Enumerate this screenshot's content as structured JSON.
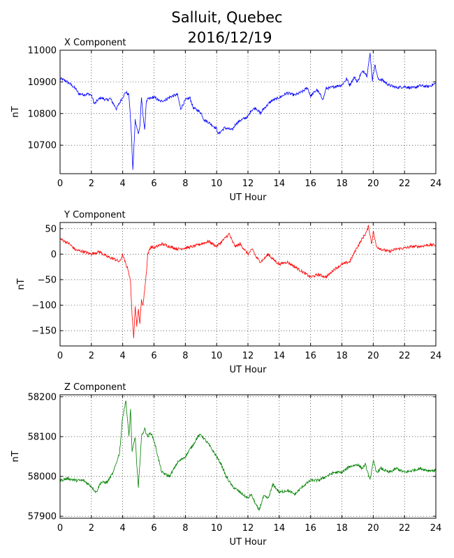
{
  "figure": {
    "title_line1": "Salluit, Quebec",
    "title_line2": "2016/12/19"
  },
  "chart_data": [
    {
      "type": "line",
      "title": "X Component",
      "xlabel": "UT Hour",
      "ylabel": "nT",
      "xlim": [
        0,
        24
      ],
      "ylim": [
        10610,
        11000
      ],
      "xticks": [
        0,
        2,
        4,
        6,
        8,
        10,
        12,
        14,
        16,
        18,
        20,
        22,
        24
      ],
      "yticks": [
        10700,
        10800,
        10900,
        11000
      ],
      "grid": true,
      "color": "#0000ff",
      "x": [
        0,
        0.3,
        0.6,
        1.0,
        1.2,
        1.6,
        1.8,
        2.0,
        2.2,
        2.4,
        2.6,
        3.0,
        3.2,
        3.6,
        4.0,
        4.2,
        4.4,
        4.55,
        4.65,
        4.8,
        5.0,
        5.1,
        5.2,
        5.4,
        5.5,
        5.6,
        6.0,
        6.4,
        6.8,
        7.0,
        7.5,
        7.7,
        8.0,
        8.3,
        8.5,
        8.8,
        9.0,
        9.2,
        9.5,
        10.0,
        10.1,
        10.5,
        11.0,
        11.2,
        11.5,
        12.0,
        12.2,
        12.5,
        12.8,
        13.0,
        13.5,
        14.0,
        14.5,
        15.0,
        15.5,
        15.8,
        16.0,
        16.4,
        16.8,
        17.0,
        17.2,
        17.5,
        18.0,
        18.3,
        18.5,
        18.8,
        19.0,
        19.2,
        19.4,
        19.6,
        19.8,
        19.95,
        20.1,
        20.3,
        20.6,
        21.0,
        21.5,
        22.0,
        22.5,
        23.0,
        23.5,
        24.0
      ],
      "y": [
        10910,
        10905,
        10895,
        10878,
        10862,
        10860,
        10862,
        10858,
        10830,
        10842,
        10850,
        10842,
        10848,
        10815,
        10852,
        10868,
        10858,
        10740,
        10620,
        10780,
        10735,
        10760,
        10850,
        10745,
        10835,
        10845,
        10852,
        10838,
        10845,
        10852,
        10860,
        10815,
        10842,
        10850,
        10818,
        10810,
        10802,
        10780,
        10772,
        10752,
        10735,
        10755,
        10748,
        10766,
        10778,
        10790,
        10810,
        10818,
        10800,
        10815,
        10840,
        10850,
        10865,
        10858,
        10870,
        10882,
        10855,
        10875,
        10845,
        10880,
        10880,
        10885,
        10890,
        10910,
        10890,
        10915,
        10900,
        10925,
        10935,
        10920,
        10990,
        10905,
        10955,
        10910,
        10905,
        10890,
        10882,
        10885,
        10880,
        10888,
        10885,
        10895
      ]
    },
    {
      "type": "line",
      "title": "Y Component",
      "xlabel": "UT Hour",
      "ylabel": "nT",
      "xlim": [
        0,
        24
      ],
      "ylim": [
        -180,
        62
      ],
      "xticks": [
        0,
        2,
        4,
        6,
        8,
        10,
        12,
        14,
        16,
        18,
        20,
        22,
        24
      ],
      "yticks": [
        -150,
        -100,
        -50,
        0,
        50
      ],
      "grid": true,
      "color": "#ff0000",
      "x": [
        0,
        0.3,
        0.6,
        1.0,
        1.5,
        2.0,
        2.5,
        3.0,
        3.5,
        3.8,
        4.0,
        4.2,
        4.35,
        4.5,
        4.6,
        4.7,
        4.8,
        4.9,
        5.0,
        5.1,
        5.2,
        5.3,
        5.4,
        5.5,
        5.6,
        5.8,
        6.0,
        6.5,
        7.0,
        7.5,
        8.0,
        8.5,
        9.0,
        9.5,
        10.0,
        10.5,
        10.8,
        11.0,
        11.2,
        11.5,
        12.0,
        12.3,
        12.5,
        12.8,
        13.0,
        13.3,
        13.6,
        14.0,
        14.5,
        15.0,
        15.5,
        16.0,
        16.5,
        17.0,
        17.5,
        18.0,
        18.5,
        19.0,
        19.3,
        19.6,
        19.7,
        19.9,
        20.0,
        20.2,
        20.5,
        21.0,
        21.5,
        22.0,
        22.5,
        23.0,
        23.5,
        24.0
      ],
      "y": [
        30,
        25,
        20,
        8,
        5,
        0,
        5,
        -5,
        -10,
        -15,
        -2,
        -20,
        -30,
        -55,
        -120,
        -165,
        -100,
        -140,
        -110,
        -135,
        -90,
        -100,
        -70,
        -40,
        0,
        15,
        12,
        20,
        15,
        10,
        12,
        15,
        20,
        25,
        15,
        30,
        40,
        25,
        15,
        20,
        0,
        10,
        -5,
        -15,
        -10,
        0,
        -10,
        -20,
        -15,
        -25,
        -35,
        -45,
        -40,
        -45,
        -30,
        -20,
        -15,
        15,
        30,
        45,
        55,
        20,
        45,
        15,
        10,
        5,
        10,
        12,
        15,
        15,
        18,
        18
      ]
    },
    {
      "type": "line",
      "title": "Z Component",
      "xlabel": "UT Hour",
      "ylabel": "nT",
      "xlim": [
        0,
        24
      ],
      "ylim": [
        57895,
        58205
      ],
      "xticks": [
        0,
        2,
        4,
        6,
        8,
        10,
        12,
        14,
        16,
        18,
        20,
        22,
        24
      ],
      "yticks": [
        57900,
        58000,
        58100,
        58200
      ],
      "grid": true,
      "color": "#008000",
      "x": [
        0,
        0.5,
        1.0,
        1.5,
        2.0,
        2.3,
        2.6,
        3.0,
        3.4,
        3.8,
        4.0,
        4.2,
        4.4,
        4.5,
        4.6,
        4.8,
        4.9,
        5.0,
        5.2,
        5.4,
        5.6,
        5.8,
        6.0,
        6.5,
        7.0,
        7.5,
        8.0,
        8.5,
        8.8,
        9.0,
        9.2,
        9.5,
        10.0,
        10.3,
        10.6,
        11.0,
        11.5,
        12.0,
        12.2,
        12.5,
        12.7,
        13.0,
        13.3,
        13.6,
        14.0,
        14.5,
        15.0,
        15.5,
        16.0,
        16.5,
        17.0,
        17.5,
        18.0,
        18.5,
        19.0,
        19.3,
        19.5,
        19.8,
        20.0,
        20.2,
        20.5,
        21.0,
        21.5,
        22.0,
        22.5,
        23.0,
        23.5,
        24.0
      ],
      "y": [
        57990,
        57995,
        57990,
        57990,
        57975,
        57960,
        57985,
        57985,
        58010,
        58060,
        58150,
        58190,
        58100,
        58170,
        58060,
        58100,
        58030,
        57970,
        58100,
        58120,
        58100,
        58110,
        58090,
        58010,
        58000,
        58035,
        58050,
        58080,
        58100,
        58105,
        58095,
        58080,
        58050,
        58030,
        58000,
        57975,
        57960,
        57945,
        57955,
        57930,
        57915,
        57950,
        57945,
        57980,
        57960,
        57965,
        57955,
        57975,
        57990,
        57990,
        58000,
        58010,
        58010,
        58025,
        58030,
        58020,
        58030,
        57990,
        58040,
        58010,
        58020,
        58010,
        58020,
        58010,
        58015,
        58020,
        58015,
        58015
      ]
    }
  ]
}
